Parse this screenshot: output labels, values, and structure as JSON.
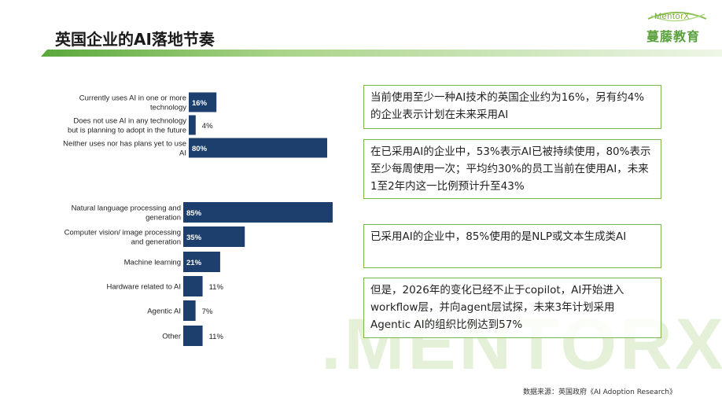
{
  "title": "英国企业的AI落地节奏",
  "logo": {
    "en": "MentorX",
    "cn": "蔓藤教育"
  },
  "watermark": ".MENTORX",
  "colors": {
    "bar": "#1d3f6e",
    "border": "#7ab648",
    "accent": "#6cb33f"
  },
  "chart_data": [
    {
      "type": "bar",
      "orientation": "horizontal",
      "categories": [
        [
          "Currently uses AI in one or more",
          "technology"
        ],
        [
          "Does not use AI in any technology",
          "but is planning to adopt in the future"
        ],
        [
          "Neither uses nor has plans yet to use",
          "AI"
        ]
      ],
      "values": [
        16,
        4,
        80
      ],
      "labels": [
        "16%",
        "4%",
        "80%"
      ],
      "xlim": [
        0,
        85
      ]
    },
    {
      "type": "bar",
      "orientation": "horizontal",
      "categories": [
        [
          "Natural language processing and",
          "generation"
        ],
        [
          "Computer vision/ image processing",
          "and generation"
        ],
        [
          "Machine learning"
        ],
        [
          "Hardware related to AI"
        ],
        [
          "Agentic AI"
        ],
        [
          "Other"
        ]
      ],
      "values": [
        85,
        35,
        21,
        11,
        7,
        11
      ],
      "labels": [
        "85%",
        "35%",
        "21%",
        "11%",
        "7%",
        "11%"
      ],
      "xlim": [
        0,
        85
      ]
    }
  ],
  "notes": [
    "当前使用至少一种AI技术的英国企业约为16%，另有约4%的企业表示计划在未来采用AI",
    "在已采用AI的企业中，53%表示AI已被持续使用，80%表示至少每周使用一次；平均约30%的员工当前在使用AI，未来1至2年内这一比例预计升至43%",
    "已采用AI的企业中，85%使用的是NLP或文本生成类AI",
    "但是，2026年的变化已经不止于copilot，AI开始进入workflow层，并向agent层试探，未来3年计划采用Agentic AI的组织比例达到57%"
  ],
  "source": "数据来源：英国政府《AI Adoption Research》"
}
